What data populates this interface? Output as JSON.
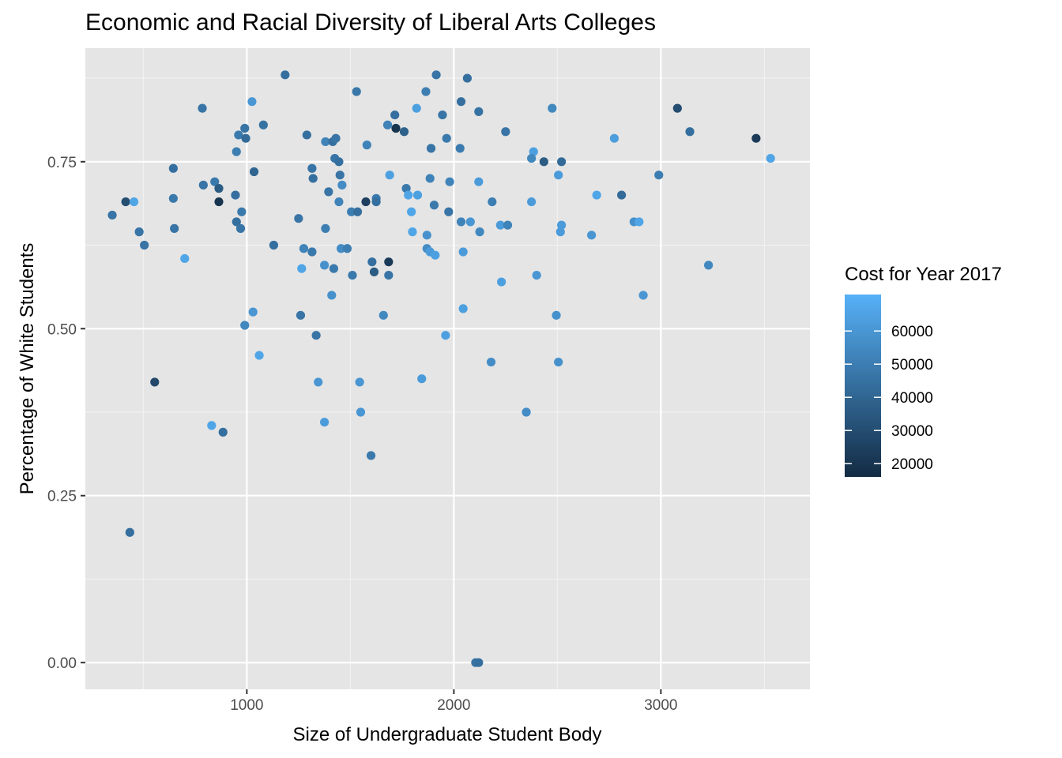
{
  "chart_data": {
    "type": "scatter",
    "title": "Economic and Racial Diversity of Liberal Arts Colleges",
    "xlabel": "Size of Undergraduate Student Body",
    "ylabel": "Percentage of White Students",
    "xlim": [
      220,
      3720
    ],
    "ylim": [
      -0.04,
      0.92
    ],
    "x_ticks": [
      1000,
      2000,
      3000
    ],
    "x_tick_labels": [
      "1000",
      "2000",
      "3000"
    ],
    "y_ticks": [
      0.0,
      0.25,
      0.5,
      0.75
    ],
    "y_tick_labels": [
      "0.00",
      "0.25",
      "0.50",
      "0.75"
    ],
    "grid": true,
    "panel_background": "#e5e5e5",
    "legend": {
      "title": "Cost for Year 2017",
      "position": "right",
      "range": [
        16000,
        71000
      ],
      "breaks": [
        20000,
        30000,
        40000,
        50000,
        60000
      ],
      "break_labels": [
        "20000",
        "30000",
        "40000",
        "50000",
        "60000"
      ],
      "low_color": "#132b43",
      "high_color": "#56b1f7"
    },
    "points": [
      [
        1185,
        0.88,
        44000
      ],
      [
        2065,
        0.875,
        44000
      ],
      [
        1915,
        0.88,
        46000
      ],
      [
        1530,
        0.855,
        47000
      ],
      [
        1865,
        0.855,
        50000
      ],
      [
        1025,
        0.84,
        60000
      ],
      [
        2035,
        0.84,
        44000
      ],
      [
        785,
        0.83,
        46000
      ],
      [
        2475,
        0.83,
        54000
      ],
      [
        3080,
        0.83,
        30000
      ],
      [
        2120,
        0.825,
        45000
      ],
      [
        1715,
        0.82,
        44000
      ],
      [
        1945,
        0.82,
        46000
      ],
      [
        1820,
        0.83,
        64000
      ],
      [
        1080,
        0.805,
        45000
      ],
      [
        990,
        0.8,
        46000
      ],
      [
        1680,
        0.805,
        52000
      ],
      [
        1720,
        0.8,
        20000
      ],
      [
        1760,
        0.795,
        38000
      ],
      [
        960,
        0.79,
        48000
      ],
      [
        995,
        0.785,
        42000
      ],
      [
        1290,
        0.79,
        44000
      ],
      [
        1380,
        0.78,
        52000
      ],
      [
        1415,
        0.78,
        44000
      ],
      [
        1430,
        0.785,
        46000
      ],
      [
        1580,
        0.775,
        52000
      ],
      [
        1890,
        0.77,
        46000
      ],
      [
        1965,
        0.785,
        48000
      ],
      [
        2030,
        0.77,
        49000
      ],
      [
        2250,
        0.795,
        46000
      ],
      [
        3140,
        0.795,
        44000
      ],
      [
        2775,
        0.785,
        63000
      ],
      [
        3460,
        0.785,
        22000
      ],
      [
        950,
        0.765,
        50000
      ],
      [
        1425,
        0.755,
        46000
      ],
      [
        1445,
        0.75,
        44000
      ],
      [
        2385,
        0.765,
        64000
      ],
      [
        2375,
        0.755,
        54000
      ],
      [
        2435,
        0.75,
        36000
      ],
      [
        2520,
        0.75,
        42000
      ],
      [
        3530,
        0.755,
        66000
      ],
      [
        645,
        0.74,
        44000
      ],
      [
        1035,
        0.735,
        40000
      ],
      [
        1315,
        0.74,
        46000
      ],
      [
        1320,
        0.725,
        44000
      ],
      [
        1450,
        0.73,
        46000
      ],
      [
        1690,
        0.73,
        64000
      ],
      [
        1885,
        0.725,
        52000
      ],
      [
        1980,
        0.72,
        52000
      ],
      [
        2120,
        0.72,
        62000
      ],
      [
        2505,
        0.73,
        62000
      ],
      [
        2990,
        0.73,
        50000
      ],
      [
        845,
        0.72,
        48000
      ],
      [
        790,
        0.715,
        46000
      ],
      [
        1460,
        0.715,
        56000
      ],
      [
        1395,
        0.705,
        46000
      ],
      [
        1770,
        0.71,
        48000
      ],
      [
        1825,
        0.7,
        64000
      ],
      [
        1780,
        0.7,
        66000
      ],
      [
        2690,
        0.7,
        66000
      ],
      [
        2810,
        0.7,
        42000
      ],
      [
        865,
        0.71,
        36000
      ],
      [
        945,
        0.7,
        44000
      ],
      [
        645,
        0.695,
        48000
      ],
      [
        415,
        0.69,
        30000
      ],
      [
        455,
        0.69,
        66000
      ],
      [
        865,
        0.69,
        20000
      ],
      [
        1445,
        0.69,
        52000
      ],
      [
        1625,
        0.695,
        48000
      ],
      [
        1575,
        0.69,
        24000
      ],
      [
        1625,
        0.69,
        44000
      ],
      [
        1905,
        0.685,
        48000
      ],
      [
        2185,
        0.69,
        50000
      ],
      [
        2375,
        0.69,
        62000
      ],
      [
        975,
        0.675,
        48000
      ],
      [
        1505,
        0.675,
        50000
      ],
      [
        1535,
        0.675,
        44000
      ],
      [
        1795,
        0.675,
        66000
      ],
      [
        1975,
        0.675,
        46000
      ],
      [
        350,
        0.67,
        46000
      ],
      [
        1250,
        0.665,
        46000
      ],
      [
        950,
        0.66,
        44000
      ],
      [
        2035,
        0.66,
        52000
      ],
      [
        2080,
        0.66,
        60000
      ],
      [
        2225,
        0.655,
        62000
      ],
      [
        2260,
        0.655,
        52000
      ],
      [
        2520,
        0.655,
        62000
      ],
      [
        2870,
        0.66,
        58000
      ],
      [
        2895,
        0.66,
        66000
      ],
      [
        650,
        0.65,
        46000
      ],
      [
        970,
        0.65,
        46000
      ],
      [
        1380,
        0.65,
        50000
      ],
      [
        480,
        0.645,
        46000
      ],
      [
        1800,
        0.645,
        66000
      ],
      [
        1870,
        0.64,
        58000
      ],
      [
        2125,
        0.645,
        54000
      ],
      [
        2515,
        0.645,
        62000
      ],
      [
        2665,
        0.64,
        60000
      ],
      [
        505,
        0.625,
        46000
      ],
      [
        1130,
        0.625,
        44000
      ],
      [
        1275,
        0.62,
        52000
      ],
      [
        1315,
        0.615,
        48000
      ],
      [
        1455,
        0.62,
        56000
      ],
      [
        1485,
        0.62,
        50000
      ],
      [
        1870,
        0.62,
        56000
      ],
      [
        1885,
        0.615,
        62000
      ],
      [
        1910,
        0.61,
        64000
      ],
      [
        2045,
        0.615,
        62000
      ],
      [
        700,
        0.605,
        66000
      ],
      [
        1605,
        0.6,
        44000
      ],
      [
        1685,
        0.6,
        22000
      ],
      [
        1615,
        0.585,
        36000
      ],
      [
        1685,
        0.58,
        46000
      ],
      [
        1510,
        0.58,
        48000
      ],
      [
        1265,
        0.59,
        66000
      ],
      [
        1375,
        0.595,
        58000
      ],
      [
        1420,
        0.59,
        48000
      ],
      [
        2400,
        0.58,
        60000
      ],
      [
        3230,
        0.595,
        54000
      ],
      [
        2230,
        0.57,
        64000
      ],
      [
        1410,
        0.55,
        58000
      ],
      [
        2915,
        0.55,
        60000
      ],
      [
        2045,
        0.53,
        64000
      ],
      [
        1030,
        0.525,
        60000
      ],
      [
        1260,
        0.52,
        46000
      ],
      [
        1660,
        0.52,
        54000
      ],
      [
        2495,
        0.52,
        58000
      ],
      [
        990,
        0.505,
        54000
      ],
      [
        1335,
        0.49,
        46000
      ],
      [
        1960,
        0.49,
        64000
      ],
      [
        1060,
        0.46,
        66000
      ],
      [
        2180,
        0.45,
        56000
      ],
      [
        2505,
        0.45,
        58000
      ],
      [
        555,
        0.42,
        28000
      ],
      [
        1345,
        0.42,
        60000
      ],
      [
        1545,
        0.42,
        60000
      ],
      [
        1845,
        0.425,
        62000
      ],
      [
        1550,
        0.375,
        60000
      ],
      [
        2350,
        0.375,
        56000
      ],
      [
        830,
        0.355,
        66000
      ],
      [
        1375,
        0.36,
        62000
      ],
      [
        885,
        0.345,
        44000
      ],
      [
        1600,
        0.31,
        48000
      ],
      [
        435,
        0.195,
        44000
      ],
      [
        2105,
        0.0,
        46000
      ],
      [
        2120,
        0.0,
        44000
      ]
    ]
  }
}
